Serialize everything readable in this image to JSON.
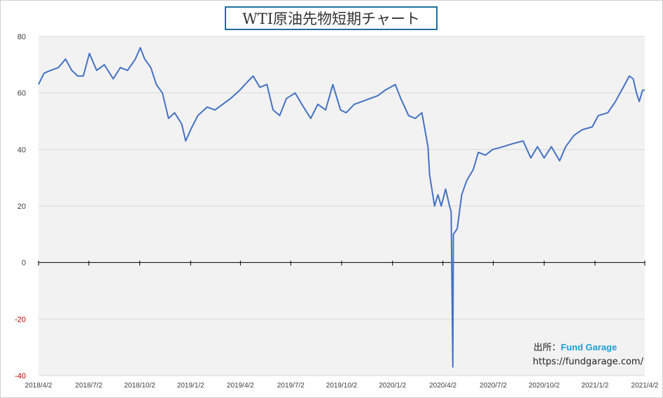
{
  "chart_data": {
    "type": "line",
    "title": "WTI原油先物短期チャート",
    "xlabel": "",
    "ylabel": "",
    "ylim": [
      -40,
      80
    ],
    "yticks": [
      -40,
      -20,
      0,
      20,
      40,
      60,
      80
    ],
    "ytick_labels": [
      "-40",
      "-20",
      "0",
      "20",
      "40",
      "60",
      "80"
    ],
    "x_range": [
      "2018-04-02",
      "2021-04-02"
    ],
    "xtick_dates": [
      "2018-04-02",
      "2018-07-02",
      "2018-10-02",
      "2019-01-02",
      "2019-04-02",
      "2019-07-02",
      "2019-10-02",
      "2020-01-02",
      "2020-04-02",
      "2020-07-02",
      "2020-10-02",
      "2021-01-02",
      "2021-04-02"
    ],
    "xtick_labels": [
      "2018/4/2",
      "2018/7/2",
      "2018/10/2",
      "2019/1/2",
      "2019/4/2",
      "2019/7/2",
      "2019/10/2",
      "2020/1/2",
      "2020/4/2",
      "2020/7/2",
      "2020/10/2",
      "2021/1/2",
      "2021/4/2"
    ],
    "grid": true,
    "negative_tick_color": "#c00000",
    "series": [
      {
        "name": "",
        "color": "#4472c4",
        "points": [
          [
            "2018-04-02",
            63
          ],
          [
            "2018-04-12",
            67
          ],
          [
            "2018-04-24",
            68
          ],
          [
            "2018-05-08",
            69
          ],
          [
            "2018-05-21",
            72
          ],
          [
            "2018-06-01",
            68
          ],
          [
            "2018-06-12",
            66
          ],
          [
            "2018-06-22",
            66
          ],
          [
            "2018-07-03",
            74
          ],
          [
            "2018-07-16",
            68
          ],
          [
            "2018-07-30",
            70
          ],
          [
            "2018-08-15",
            65
          ],
          [
            "2018-08-28",
            69
          ],
          [
            "2018-09-10",
            68
          ],
          [
            "2018-09-24",
            72
          ],
          [
            "2018-10-03",
            76
          ],
          [
            "2018-10-11",
            72
          ],
          [
            "2018-10-22",
            69
          ],
          [
            "2018-11-01",
            63
          ],
          [
            "2018-11-12",
            60
          ],
          [
            "2018-11-23",
            51
          ],
          [
            "2018-12-04",
            53
          ],
          [
            "2018-12-17",
            49
          ],
          [
            "2018-12-24",
            43
          ],
          [
            "2019-01-02",
            47
          ],
          [
            "2019-01-15",
            52
          ],
          [
            "2019-02-01",
            55
          ],
          [
            "2019-02-15",
            54
          ],
          [
            "2019-03-01",
            56
          ],
          [
            "2019-03-15",
            58
          ],
          [
            "2019-04-01",
            61
          ],
          [
            "2019-04-15",
            64
          ],
          [
            "2019-04-25",
            66
          ],
          [
            "2019-05-07",
            62
          ],
          [
            "2019-05-20",
            63
          ],
          [
            "2019-05-31",
            54
          ],
          [
            "2019-06-12",
            52
          ],
          [
            "2019-06-24",
            58
          ],
          [
            "2019-07-10",
            60
          ],
          [
            "2019-07-22",
            56
          ],
          [
            "2019-08-07",
            51
          ],
          [
            "2019-08-20",
            56
          ],
          [
            "2019-09-03",
            54
          ],
          [
            "2019-09-16",
            63
          ],
          [
            "2019-09-30",
            54
          ],
          [
            "2019-10-10",
            53
          ],
          [
            "2019-10-25",
            56
          ],
          [
            "2019-11-08",
            57
          ],
          [
            "2019-11-22",
            58
          ],
          [
            "2019-12-06",
            59
          ],
          [
            "2019-12-20",
            61
          ],
          [
            "2020-01-07",
            63
          ],
          [
            "2020-01-17",
            58
          ],
          [
            "2020-01-31",
            52
          ],
          [
            "2020-02-12",
            51
          ],
          [
            "2020-02-24",
            53
          ],
          [
            "2020-03-06",
            41
          ],
          [
            "2020-03-09",
            31
          ],
          [
            "2020-03-18",
            20
          ],
          [
            "2020-03-24",
            24
          ],
          [
            "2020-03-30",
            20
          ],
          [
            "2020-04-07",
            26
          ],
          [
            "2020-04-14",
            20
          ],
          [
            "2020-04-17",
            18
          ],
          [
            "2020-04-20",
            -37
          ],
          [
            "2020-04-21",
            10
          ],
          [
            "2020-04-28",
            12
          ],
          [
            "2020-05-06",
            24
          ],
          [
            "2020-05-15",
            29
          ],
          [
            "2020-05-27",
            33
          ],
          [
            "2020-06-05",
            39
          ],
          [
            "2020-06-18",
            38
          ],
          [
            "2020-07-01",
            40
          ],
          [
            "2020-07-20",
            41
          ],
          [
            "2020-08-05",
            42
          ],
          [
            "2020-08-25",
            43
          ],
          [
            "2020-09-08",
            37
          ],
          [
            "2020-09-20",
            41
          ],
          [
            "2020-10-02",
            37
          ],
          [
            "2020-10-15",
            41
          ],
          [
            "2020-10-30",
            36
          ],
          [
            "2020-11-10",
            41
          ],
          [
            "2020-11-25",
            45
          ],
          [
            "2020-12-10",
            47
          ],
          [
            "2020-12-28",
            48
          ],
          [
            "2021-01-08",
            52
          ],
          [
            "2021-01-25",
            53
          ],
          [
            "2021-02-08",
            57
          ],
          [
            "2021-02-22",
            62
          ],
          [
            "2021-03-05",
            66
          ],
          [
            "2021-03-12",
            65
          ],
          [
            "2021-03-18",
            60
          ],
          [
            "2021-03-23",
            57
          ],
          [
            "2021-03-29",
            61
          ],
          [
            "2021-04-02",
            61
          ]
        ]
      }
    ]
  },
  "source": {
    "prefix": "出所：",
    "brand": "Fund Garage",
    "url": "https://fundgarage.com/"
  }
}
